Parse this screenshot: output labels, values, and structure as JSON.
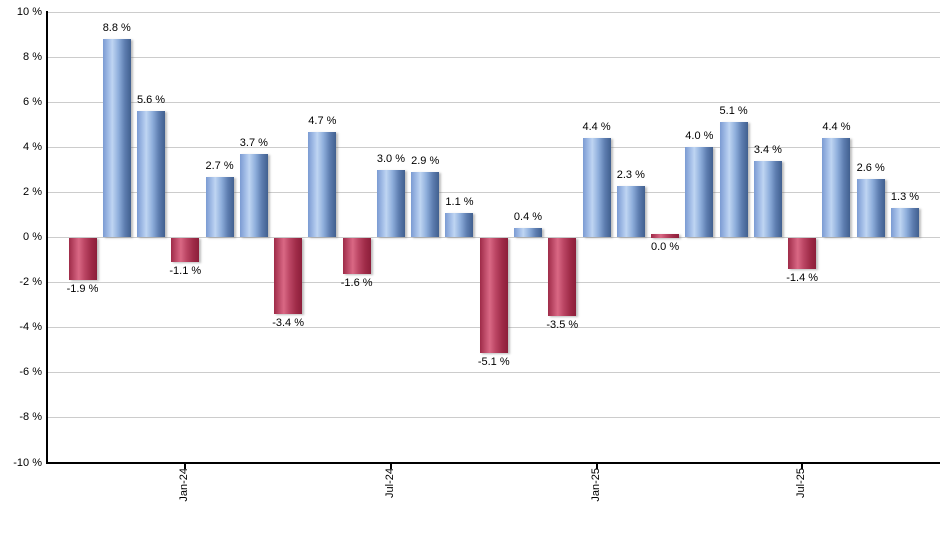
{
  "chart_data": {
    "type": "bar",
    "title": "",
    "unit": "%",
    "values": [
      -1.9,
      8.8,
      5.6,
      -1.1,
      2.7,
      3.7,
      -3.4,
      4.7,
      -1.6,
      3.0,
      2.9,
      1.1,
      -5.1,
      0.4,
      -3.5,
      4.4,
      2.3,
      0.0,
      4.0,
      5.1,
      3.4,
      -1.4,
      4.4,
      2.6,
      1.3
    ],
    "bar_labels": [
      "-1.9 %",
      "8.8 %",
      "5.6 %",
      "-1.1 %",
      "2.7 %",
      "3.7 %",
      "-3.4 %",
      "4.7 %",
      "-1.6 %",
      "3.0 %",
      "2.9 %",
      "1.1 %",
      "-5.1 %",
      "0.4 %",
      "-3.5 %",
      "4.4 %",
      "2.3 %",
      "0.0 %",
      "4.0 %",
      "5.1 %",
      "3.4 %",
      "-1.4 %",
      "4.4 %",
      "2.6 %",
      "1.3 %"
    ],
    "bar_styles": [
      "neg",
      "pos",
      "pos",
      "neg",
      "pos",
      "pos",
      "neg",
      "pos",
      "neg",
      "pos",
      "pos",
      "pos",
      "neg",
      "pos",
      "neg",
      "pos",
      "pos",
      "neg",
      "pos",
      "pos",
      "pos",
      "neg",
      "pos",
      "pos",
      "pos"
    ],
    "x_ticks": [
      {
        "label": "Jan-24",
        "bar_index": 3
      },
      {
        "label": "Jul-24",
        "bar_index": 9
      },
      {
        "label": "Jan-25",
        "bar_index": 15
      },
      {
        "label": "Jul-25",
        "bar_index": 21
      }
    ],
    "y_ticks": [
      {
        "label": "10 %",
        "value": 10
      },
      {
        "label": "8 %",
        "value": 8
      },
      {
        "label": "6 %",
        "value": 6
      },
      {
        "label": "4 %",
        "value": 4
      },
      {
        "label": "2 %",
        "value": 2
      },
      {
        "label": "0 %",
        "value": 0
      },
      {
        "label": "-2 %",
        "value": -2
      },
      {
        "label": "-4 %",
        "value": -4
      },
      {
        "label": "-6 %",
        "value": -6
      },
      {
        "label": "-8 %",
        "value": -8
      },
      {
        "label": "-10 %",
        "value": -10
      }
    ],
    "ylim": [
      -10,
      10
    ],
    "grid": true,
    "legend_position": "none",
    "colors": {
      "positive_bar_base": "#6f92c8",
      "negative_bar_base": "#b83a58",
      "positive_gradient_stops": [
        "#7b9bd2 0%",
        "#adc6ec 25%",
        "#bfd5f2 33%",
        "#8fafdc 55%",
        "#5d7db0 78%",
        "#41608f 100%"
      ],
      "negative_gradient_stops": [
        "#9e2b48 0%",
        "#cd5b78 27%",
        "#d96884 35%",
        "#bc4765 55%",
        "#a02c49 78%",
        "#8c1e3a 100%"
      ],
      "gridline": "#cccccc",
      "axis": "#000000",
      "label_text": "#000000"
    }
  }
}
